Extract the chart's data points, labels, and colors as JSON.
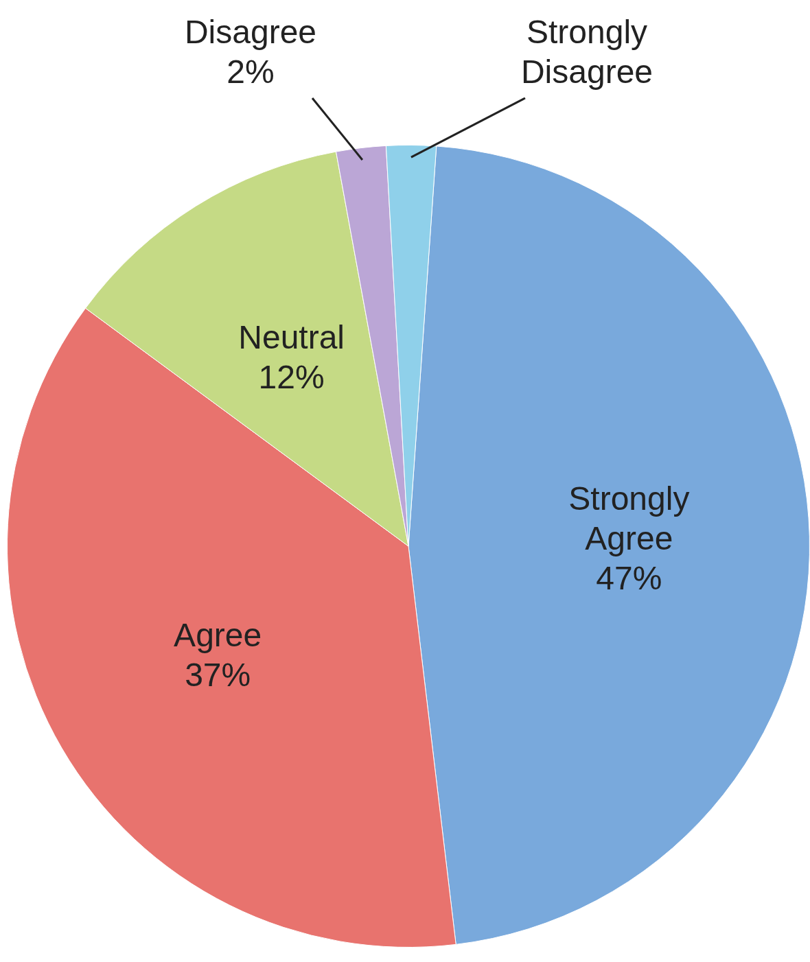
{
  "chart_data": {
    "type": "pie",
    "categories": [
      "Strongly Agree",
      "Agree",
      "Neutral",
      "Disagree",
      "Strongly Disagree"
    ],
    "values": [
      47,
      37,
      12,
      2,
      2
    ],
    "colors": [
      "#79a9dc",
      "#e8736e",
      "#c5da85",
      "#bba6d6",
      "#8fd0ea"
    ],
    "value_labels": [
      "47%",
      "37%",
      "12%",
      "2%",
      null
    ],
    "legend": false
  }
}
